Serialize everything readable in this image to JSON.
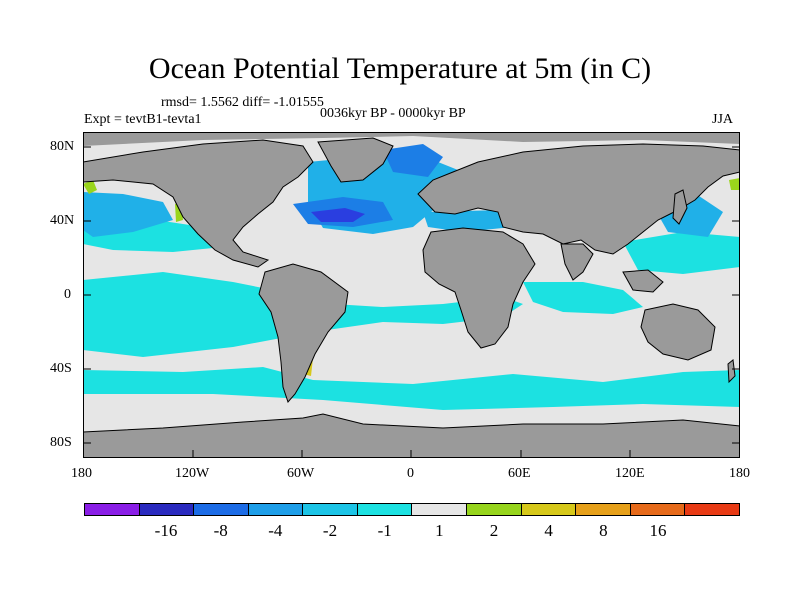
{
  "title": "Ocean Potential Temperature at 5m (in C)",
  "stats": "rmsd= 1.5562 diff= -1.01555",
  "expt": "Expt = tevtB1-tevta1",
  "period": "0036kyr BP - 0000kyr BP",
  "season": "JJA",
  "axes": {
    "lat_labels": [
      "80N",
      "40N",
      "0",
      "40S",
      "80S"
    ],
    "lon_labels": [
      "180",
      "120W",
      "60W",
      "0",
      "60E",
      "120E",
      "180"
    ]
  },
  "colors": {
    "land": "#9a9a9a",
    "near_zero": "#e6e6e6",
    "c_m1": "#1ce1e1",
    "c_m2": "#20b0e8",
    "c_m4": "#1c7ee6",
    "c_m8": "#2a3ee0",
    "c_m16": "#2a2abf",
    "c_p1": "#9ad51c",
    "c_p2": "#d7c81c"
  },
  "legend": {
    "colors": [
      "#8a1ee6",
      "#2a2abf",
      "#1c6ce6",
      "#1e9ee8",
      "#1cc4e6",
      "#1ce1e1",
      "#e6e6e6",
      "#96d41c",
      "#d6c81a",
      "#e6a01a",
      "#e66a1a",
      "#e83a14"
    ],
    "labels": [
      "-16",
      "-8",
      "-4",
      "-2",
      "-1",
      "1",
      "2",
      "4",
      "8",
      "16"
    ]
  }
}
